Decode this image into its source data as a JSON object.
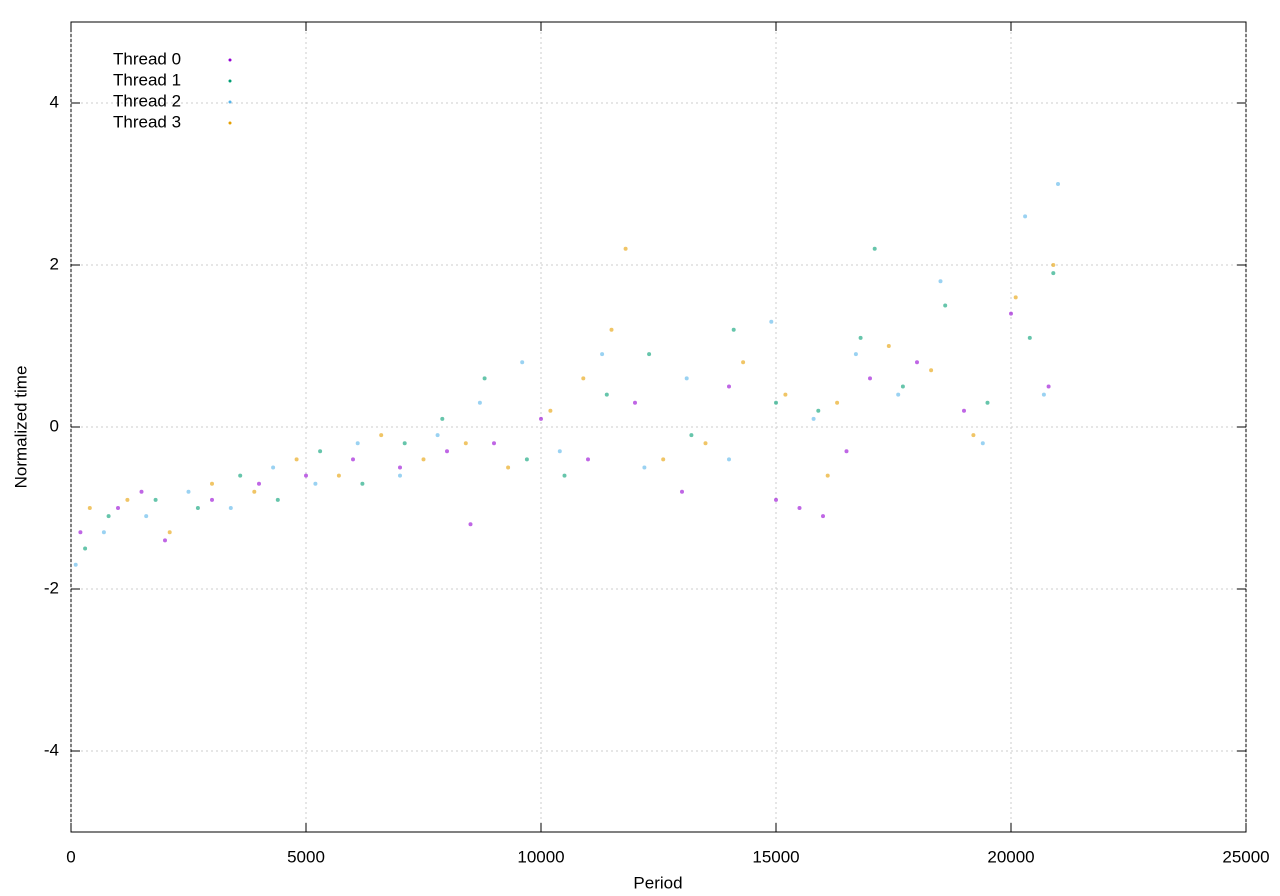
{
  "chart_data": {
    "type": "scatter",
    "x_label": "Period",
    "y_label": "Normalized time",
    "xlim": [
      0,
      25000
    ],
    "xticks": [
      0,
      5000,
      10000,
      15000,
      20000,
      25000
    ],
    "ylim": [
      -5,
      5
    ],
    "yticks": [
      -4,
      -2,
      0,
      2,
      4
    ],
    "grid": true,
    "legend": "top-left",
    "series": [
      {
        "name": "Thread 0",
        "color": "#9400d3",
        "x": [
          200,
          1000,
          1500,
          2000,
          3000,
          4000,
          5000,
          6000,
          7000,
          8000,
          8500,
          9000,
          10000,
          11000,
          12000,
          13000,
          14000,
          15000,
          15500,
          16000,
          16500,
          17000,
          18000,
          19000,
          20000,
          20800
        ],
        "values": [
          -1.3,
          -1.0,
          -0.8,
          -1.4,
          -0.9,
          -0.7,
          -0.6,
          -0.4,
          -0.5,
          -0.3,
          -1.2,
          -0.2,
          0.1,
          -0.4,
          0.3,
          -0.8,
          0.5,
          -0.9,
          -1.0,
          -1.1,
          -0.3,
          0.6,
          0.8,
          0.2,
          1.4,
          0.5
        ]
      },
      {
        "name": "Thread 1",
        "color": "#009e73",
        "x": [
          300,
          800,
          1800,
          2700,
          3600,
          4400,
          5300,
          6200,
          7100,
          7900,
          8800,
          9700,
          10500,
          11400,
          12300,
          13200,
          14100,
          15000,
          15900,
          16800,
          17100,
          17700,
          18600,
          19500,
          20400,
          20900
        ],
        "values": [
          -1.5,
          -1.1,
          -0.9,
          -1.0,
          -0.6,
          -0.9,
          -0.3,
          -0.7,
          -0.2,
          0.1,
          0.6,
          -0.4,
          -0.6,
          0.4,
          0.9,
          -0.1,
          1.2,
          0.3,
          0.2,
          1.1,
          2.2,
          0.5,
          1.5,
          0.3,
          1.1,
          1.9
        ]
      },
      {
        "name": "Thread 2",
        "color": "#56b4e9",
        "x": [
          100,
          700,
          1600,
          2500,
          3400,
          4300,
          5200,
          6100,
          7000,
          7800,
          8700,
          9600,
          10400,
          11300,
          12200,
          13100,
          14000,
          14900,
          15800,
          16700,
          17600,
          18500,
          19400,
          20300,
          20700,
          21000
        ],
        "values": [
          -1.7,
          -1.3,
          -1.1,
          -0.8,
          -1.0,
          -0.5,
          -0.7,
          -0.2,
          -0.6,
          -0.1,
          0.3,
          0.8,
          -0.3,
          0.9,
          -0.5,
          0.6,
          -0.4,
          1.3,
          0.1,
          0.9,
          0.4,
          1.8,
          -0.2,
          2.6,
          0.4,
          3.0
        ]
      },
      {
        "name": "Thread 3",
        "color": "#e69f00",
        "x": [
          400,
          1200,
          2100,
          3000,
          3900,
          4800,
          5700,
          6600,
          7500,
          8400,
          9300,
          10200,
          10900,
          11500,
          11800,
          12600,
          13500,
          14300,
          15200,
          16100,
          16300,
          17400,
          18300,
          19200,
          20100,
          20900
        ],
        "values": [
          -1.0,
          -0.9,
          -1.3,
          -0.7,
          -0.8,
          -0.4,
          -0.6,
          -0.1,
          -0.4,
          -0.2,
          -0.5,
          0.2,
          0.6,
          1.2,
          2.2,
          -0.4,
          -0.2,
          0.8,
          0.4,
          -0.6,
          0.3,
          1.0,
          0.7,
          -0.1,
          1.6,
          2.0
        ]
      }
    ]
  }
}
